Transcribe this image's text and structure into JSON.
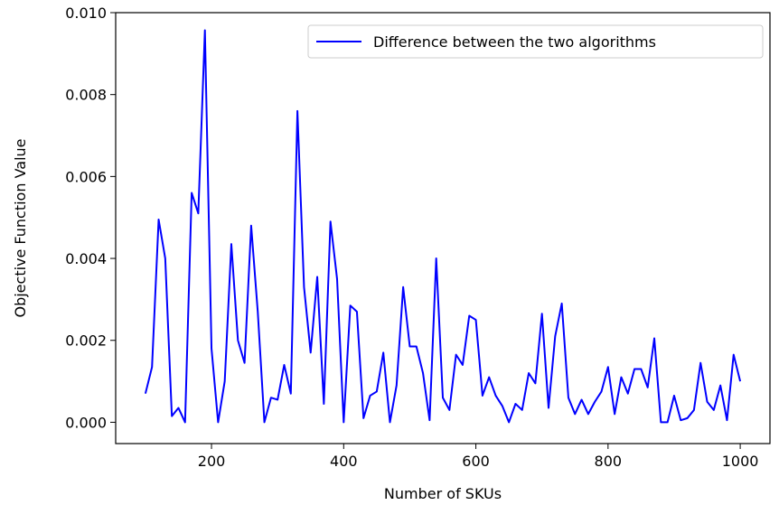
{
  "chart_data": {
    "type": "line",
    "title": "",
    "xlabel": "Number of SKUs",
    "ylabel": "Objective Function Value",
    "xlim": [
      55,
      1045
    ],
    "ylim": [
      -0.00052,
      0.01
    ],
    "xticks": [
      200,
      400,
      600,
      800,
      1000
    ],
    "xtick_labels": [
      "200",
      "400",
      "600",
      "800",
      "1000"
    ],
    "yticks": [
      0.0,
      0.002,
      0.004,
      0.006,
      0.008,
      0.01
    ],
    "ytick_labels": [
      "0.000",
      "0.002",
      "0.004",
      "0.006",
      "0.008",
      "0.010"
    ],
    "grid": false,
    "legend_position": "top-right",
    "series": [
      {
        "name": "Difference between the two algorithms",
        "color": "#0000ff",
        "x": [
          100,
          110,
          120,
          130,
          140,
          150,
          160,
          170,
          180,
          190,
          200,
          210,
          220,
          230,
          240,
          250,
          260,
          270,
          280,
          290,
          300,
          310,
          320,
          330,
          340,
          350,
          360,
          370,
          380,
          390,
          400,
          410,
          420,
          430,
          440,
          450,
          460,
          470,
          480,
          490,
          500,
          510,
          520,
          530,
          540,
          550,
          560,
          570,
          580,
          590,
          600,
          610,
          620,
          630,
          640,
          650,
          660,
          670,
          680,
          690,
          700,
          710,
          720,
          730,
          740,
          750,
          760,
          770,
          780,
          790,
          800,
          810,
          820,
          830,
          840,
          850,
          860,
          870,
          880,
          890,
          900,
          910,
          920,
          930,
          940,
          950,
          960,
          970,
          980,
          990,
          1000
        ],
        "y": [
          0.0007,
          0.00135,
          0.00495,
          0.004,
          0.00015,
          0.00035,
          0.0,
          0.0056,
          0.0051,
          0.00957,
          0.0018,
          0.0,
          0.001,
          0.00435,
          0.002,
          0.00145,
          0.0048,
          0.0027,
          0.0,
          0.0006,
          0.00055,
          0.0014,
          0.0007,
          0.0076,
          0.0033,
          0.0017,
          0.00355,
          0.00045,
          0.0049,
          0.0035,
          0.0,
          0.00285,
          0.0027,
          0.0001,
          0.00065,
          0.00075,
          0.0017,
          0.0,
          0.0009,
          0.0033,
          0.00185,
          0.00185,
          0.0012,
          5e-05,
          0.004,
          0.0006,
          0.0003,
          0.00165,
          0.0014,
          0.0026,
          0.0025,
          0.00065,
          0.0011,
          0.00065,
          0.0004,
          0.0,
          0.00045,
          0.0003,
          0.0012,
          0.00095,
          0.00265,
          0.00035,
          0.0021,
          0.0029,
          0.0006,
          0.0002,
          0.00055,
          0.0002,
          0.0005,
          0.00075,
          0.00135,
          0.0002,
          0.0011,
          0.0007,
          0.0013,
          0.0013,
          0.00085,
          0.00205,
          0.0,
          0.0,
          0.00065,
          5e-05,
          0.0001,
          0.0003,
          0.00145,
          0.0005,
          0.0003,
          0.0009,
          5e-05,
          0.00165,
          0.001
        ]
      }
    ]
  }
}
